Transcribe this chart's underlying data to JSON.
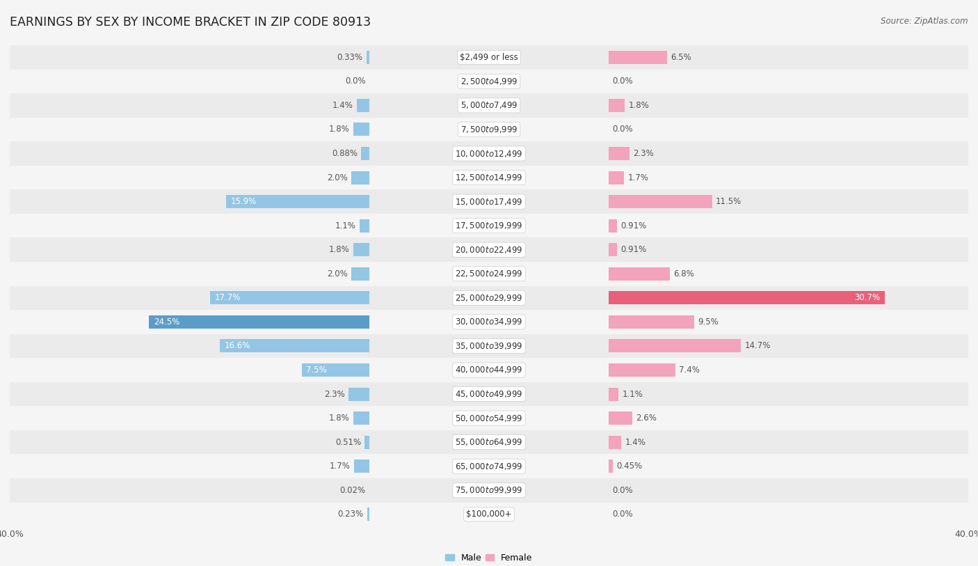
{
  "title": "EARNINGS BY SEX BY INCOME BRACKET IN ZIP CODE 80913",
  "source": "Source: ZipAtlas.com",
  "categories": [
    "$2,499 or less",
    "$2,500 to $4,999",
    "$5,000 to $7,499",
    "$7,500 to $9,999",
    "$10,000 to $12,499",
    "$12,500 to $14,999",
    "$15,000 to $17,499",
    "$17,500 to $19,999",
    "$20,000 to $22,499",
    "$22,500 to $24,999",
    "$25,000 to $29,999",
    "$30,000 to $34,999",
    "$35,000 to $39,999",
    "$40,000 to $44,999",
    "$45,000 to $49,999",
    "$50,000 to $54,999",
    "$55,000 to $64,999",
    "$65,000 to $74,999",
    "$75,000 to $99,999",
    "$100,000+"
  ],
  "male_values": [
    0.33,
    0.0,
    1.4,
    1.8,
    0.88,
    2.0,
    15.9,
    1.1,
    1.8,
    2.0,
    17.7,
    24.5,
    16.6,
    7.5,
    2.3,
    1.8,
    0.51,
    1.7,
    0.02,
    0.23
  ],
  "female_values": [
    6.5,
    0.0,
    1.8,
    0.0,
    2.3,
    1.7,
    11.5,
    0.91,
    0.91,
    6.8,
    30.7,
    9.5,
    14.7,
    7.4,
    1.1,
    2.6,
    1.4,
    0.45,
    0.0,
    0.0
  ],
  "male_color": "#93c6e4",
  "female_color": "#f4a3bc",
  "male_highlight_color": "#5b9dc9",
  "female_highlight_color": "#e8607a",
  "row_even_color": "#ebebeb",
  "row_odd_color": "#f5f5f5",
  "bg_color": "#f5f5f5",
  "axis_limit": 40.0,
  "title_fontsize": 12.5,
  "label_fontsize": 8.5,
  "tick_fontsize": 9,
  "cat_fontsize": 8.5
}
